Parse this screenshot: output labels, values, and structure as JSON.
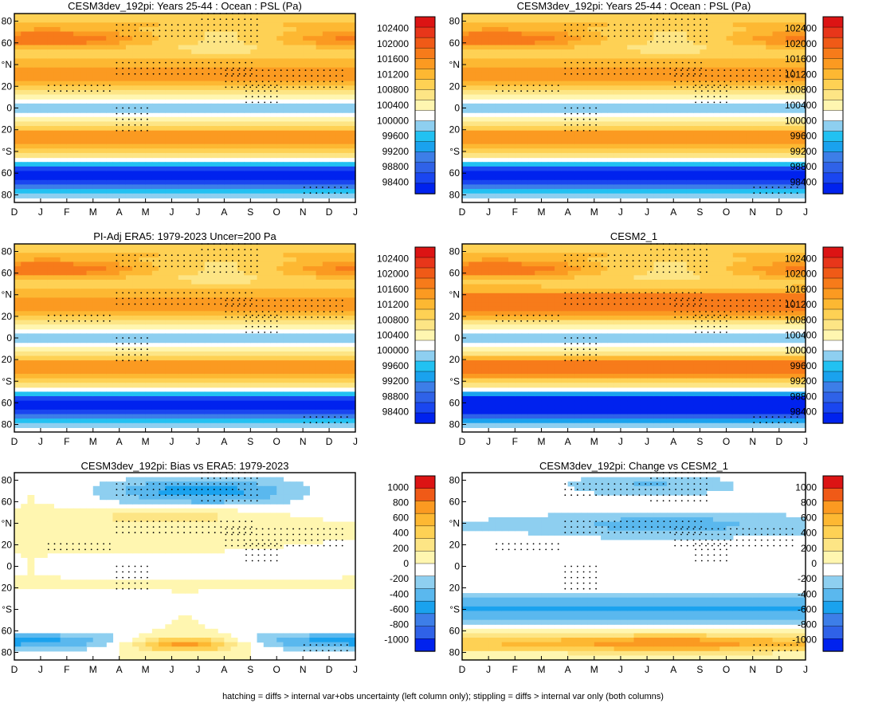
{
  "footer": "hatching = diffs > internal var+obs uncertainty (left column only); stippling = diffs > internal var only (both columns)",
  "chart_data": [
    {
      "type": "heatmap",
      "title": "CESM3dev_192pi: Years 25-44 : Ocean : PSL (Pa)",
      "field": "psl",
      "x_ticks": [
        "D",
        "J",
        "F",
        "M",
        "A",
        "M",
        "J",
        "J",
        "A",
        "S",
        "O",
        "N",
        "D",
        "J"
      ],
      "y_ticks": [
        "80",
        "60",
        "°N",
        "20",
        "0",
        "20",
        "°S",
        "60",
        "80"
      ],
      "colorbar_labels": [
        "102400",
        "102000",
        "101600",
        "101200",
        "100800",
        "100400",
        "100000",
        "99600",
        "99200",
        "98800",
        "98400"
      ],
      "zrange": [
        98400,
        102400
      ]
    },
    {
      "type": "heatmap",
      "title": "CESM3dev_192pi: Years 25-44 : Ocean : PSL (Pa)",
      "field": "psl",
      "x_ticks": [
        "D",
        "J",
        "F",
        "M",
        "A",
        "M",
        "J",
        "J",
        "A",
        "S",
        "O",
        "N",
        "D",
        "J"
      ],
      "y_ticks": [
        "80",
        "60",
        "°N",
        "20",
        "0",
        "20",
        "°S",
        "60",
        "80"
      ],
      "colorbar_labels": [
        "102400",
        "102000",
        "101600",
        "101200",
        "100800",
        "100400",
        "100000",
        "99600",
        "99200",
        "98800",
        "98400"
      ],
      "zrange": [
        98400,
        102400
      ]
    },
    {
      "type": "heatmap",
      "title": "PI-Adj ERA5: 1979-2023 Uncer=200 Pa",
      "field": "psl",
      "x_ticks": [
        "D",
        "J",
        "F",
        "M",
        "A",
        "M",
        "J",
        "J",
        "A",
        "S",
        "O",
        "N",
        "D",
        "J"
      ],
      "y_ticks": [
        "80",
        "60",
        "°N",
        "20",
        "0",
        "20",
        "°S",
        "60",
        "80"
      ],
      "colorbar_labels": [
        "102400",
        "102000",
        "101600",
        "101200",
        "100800",
        "100400",
        "100000",
        "99600",
        "99200",
        "98800",
        "98400"
      ],
      "zrange": [
        98400,
        102400
      ]
    },
    {
      "type": "heatmap",
      "title": "CESM2_1",
      "field": "psl",
      "x_ticks": [
        "D",
        "J",
        "F",
        "M",
        "A",
        "M",
        "J",
        "J",
        "A",
        "S",
        "O",
        "N",
        "D",
        "J"
      ],
      "y_ticks": [
        "80",
        "60",
        "°N",
        "20",
        "0",
        "20",
        "°S",
        "60",
        "80"
      ],
      "colorbar_labels": [
        "102400",
        "102000",
        "101600",
        "101200",
        "100800",
        "100400",
        "100000",
        "99600",
        "99200",
        "98800",
        "98400"
      ],
      "zrange": [
        98400,
        102400
      ]
    },
    {
      "type": "heatmap",
      "title": "CESM3dev_192pi: Bias vs ERA5: 1979-2023",
      "field": "bias",
      "x_ticks": [
        "D",
        "J",
        "F",
        "M",
        "A",
        "M",
        "J",
        "J",
        "A",
        "S",
        "O",
        "N",
        "D",
        "J"
      ],
      "y_ticks": [
        "80",
        "60",
        "°N",
        "20",
        "0",
        "20",
        "°S",
        "60",
        "80"
      ],
      "colorbar_labels": [
        "1000",
        "800",
        "600",
        "400",
        "200",
        "0",
        "-200",
        "-400",
        "-600",
        "-800",
        "-1000"
      ],
      "zrange": [
        -1000,
        1000
      ]
    },
    {
      "type": "heatmap",
      "title": "CESM3dev_192pi: Change vs CESM2_1",
      "field": "change",
      "x_ticks": [
        "D",
        "J",
        "F",
        "M",
        "A",
        "M",
        "J",
        "J",
        "A",
        "S",
        "O",
        "N",
        "D",
        "J"
      ],
      "y_ticks": [
        "80",
        "60",
        "°N",
        "20",
        "0",
        "20",
        "°S",
        "60",
        "80"
      ],
      "colorbar_labels": [
        "1000",
        "800",
        "600",
        "400",
        "200",
        "0",
        "-200",
        "-400",
        "-600",
        "-800",
        "-1000"
      ],
      "zrange": [
        -1000,
        1000
      ]
    }
  ],
  "colors": {
    "psl_scale": [
      "#0022ee",
      "#1a46f0",
      "#2f62e8",
      "#3d7ee8",
      "#1aa2ee",
      "#22c1f2",
      "#8ecff0",
      "#ffffff",
      "#fff6b0",
      "#fde585",
      "#fed154",
      "#fdb832",
      "#fb9a21",
      "#f77b1a",
      "#f05a17",
      "#e8361a",
      "#dc1414"
    ],
    "diff_scale": [
      "#0022ee",
      "#2f62e8",
      "#3d7ee8",
      "#1aa2ee",
      "#5ab8ee",
      "#8ecff0",
      "#ffffff",
      "#fff6b0",
      "#fde585",
      "#fed154",
      "#fdb832",
      "#fb9a21",
      "#f05a17",
      "#dc1414"
    ]
  }
}
